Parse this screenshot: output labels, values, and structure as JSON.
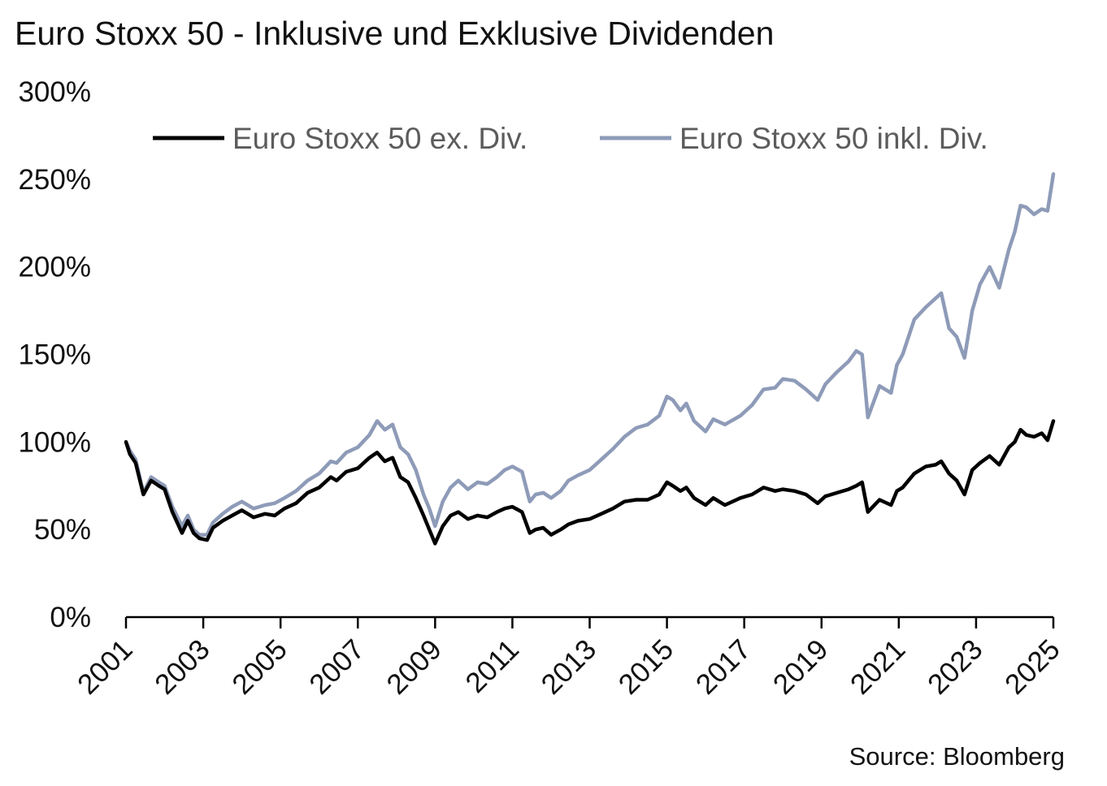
{
  "title": "Euro Stoxx 50 - Inklusive und Exklusive Dividenden",
  "source": "Source: Bloomberg",
  "colors": {
    "ex_div": "#000000",
    "incl_div": "#8e9bb8",
    "axis": "#000000"
  },
  "chart_data": {
    "type": "line",
    "title": "Euro Stoxx 50 - Inklusive und Exklusive Dividenden",
    "xlabel": "",
    "ylabel": "",
    "ylim": [
      0,
      300
    ],
    "xlim": [
      2001,
      2025
    ],
    "y_tick_labels": [
      "0%",
      "50%",
      "100%",
      "150%",
      "200%",
      "250%",
      "300%"
    ],
    "y_ticks": [
      0,
      50,
      100,
      150,
      200,
      250,
      300
    ],
    "x_tick_labels": [
      "2001",
      "2003",
      "2005",
      "2007",
      "2009",
      "2011",
      "2013",
      "2015",
      "2017",
      "2019",
      "2021",
      "2023",
      "2025"
    ],
    "x_ticks": [
      2001,
      2003,
      2005,
      2007,
      2009,
      2011,
      2013,
      2015,
      2017,
      2019,
      2021,
      2023,
      2025
    ],
    "grid": false,
    "legend_position": "top",
    "series": [
      {
        "name": "Euro Stoxx 50 ex. Div.",
        "color": "#000000",
        "x": [
          2001.0,
          2001.1,
          2001.25,
          2001.45,
          2001.65,
          2001.85,
          2002.0,
          2002.2,
          2002.45,
          2002.6,
          2002.75,
          2002.9,
          2003.1,
          2003.25,
          2003.5,
          2003.75,
          2004.0,
          2004.3,
          2004.6,
          2004.85,
          2005.1,
          2005.4,
          2005.7,
          2006.0,
          2006.3,
          2006.45,
          2006.7,
          2007.0,
          2007.3,
          2007.5,
          2007.7,
          2007.9,
          2008.1,
          2008.3,
          2008.5,
          2008.7,
          2008.85,
          2009.0,
          2009.2,
          2009.4,
          2009.6,
          2009.85,
          2010.1,
          2010.35,
          2010.6,
          2010.8,
          2011.0,
          2011.25,
          2011.45,
          2011.6,
          2011.8,
          2012.0,
          2012.25,
          2012.45,
          2012.7,
          2013.0,
          2013.3,
          2013.6,
          2013.9,
          2014.2,
          2014.5,
          2014.8,
          2015.0,
          2015.15,
          2015.35,
          2015.5,
          2015.7,
          2016.0,
          2016.2,
          2016.5,
          2016.9,
          2017.2,
          2017.5,
          2017.8,
          2018.0,
          2018.3,
          2018.6,
          2018.9,
          2019.1,
          2019.4,
          2019.7,
          2019.9,
          2020.05,
          2020.2,
          2020.5,
          2020.8,
          2020.95,
          2021.1,
          2021.4,
          2021.7,
          2021.95,
          2022.1,
          2022.3,
          2022.5,
          2022.7,
          2022.9,
          2023.1,
          2023.35,
          2023.6,
          2023.85,
          2024.0,
          2024.15,
          2024.3,
          2024.5,
          2024.7,
          2024.85,
          2025.0
        ],
        "y": [
          100,
          93,
          88,
          70,
          78,
          75,
          73,
          60,
          48,
          55,
          48,
          45,
          44,
          51,
          55,
          58,
          61,
          57,
          59,
          58,
          62,
          65,
          71,
          74,
          80,
          78,
          83,
          85,
          91,
          94,
          89,
          91,
          80,
          77,
          68,
          58,
          50,
          42,
          52,
          58,
          60,
          56,
          58,
          57,
          60,
          62,
          63,
          60,
          48,
          50,
          51,
          47,
          50,
          53,
          55,
          56,
          59,
          62,
          66,
          67,
          67,
          70,
          77,
          75,
          72,
          74,
          68,
          64,
          68,
          64,
          68,
          70,
          74,
          72,
          73,
          72,
          70,
          65,
          69,
          71,
          73,
          75,
          77,
          60,
          67,
          64,
          72,
          74,
          82,
          86,
          87,
          89,
          82,
          78,
          70,
          84,
          88,
          92,
          87,
          97,
          100,
          107,
          104,
          103,
          105,
          101,
          112
        ]
      },
      {
        "name": "Euro Stoxx 50 inkl. Div.",
        "color": "#8e9bb8",
        "x": [
          2001.0,
          2001.1,
          2001.25,
          2001.45,
          2001.65,
          2001.85,
          2002.0,
          2002.2,
          2002.45,
          2002.6,
          2002.75,
          2002.9,
          2003.1,
          2003.25,
          2003.5,
          2003.75,
          2004.0,
          2004.3,
          2004.6,
          2004.85,
          2005.1,
          2005.4,
          2005.7,
          2006.0,
          2006.3,
          2006.45,
          2006.7,
          2007.0,
          2007.3,
          2007.5,
          2007.7,
          2007.9,
          2008.1,
          2008.3,
          2008.5,
          2008.7,
          2008.85,
          2009.0,
          2009.2,
          2009.4,
          2009.6,
          2009.85,
          2010.1,
          2010.35,
          2010.6,
          2010.8,
          2011.0,
          2011.25,
          2011.45,
          2011.6,
          2011.8,
          2012.0,
          2012.25,
          2012.45,
          2012.7,
          2013.0,
          2013.3,
          2013.6,
          2013.9,
          2014.2,
          2014.5,
          2014.8,
          2015.0,
          2015.15,
          2015.35,
          2015.5,
          2015.7,
          2016.0,
          2016.2,
          2016.5,
          2016.9,
          2017.2,
          2017.5,
          2017.8,
          2018.0,
          2018.3,
          2018.6,
          2018.9,
          2019.1,
          2019.4,
          2019.7,
          2019.9,
          2020.05,
          2020.2,
          2020.5,
          2020.8,
          2020.95,
          2021.1,
          2021.4,
          2021.7,
          2021.95,
          2022.1,
          2022.3,
          2022.5,
          2022.7,
          2022.9,
          2023.1,
          2023.35,
          2023.6,
          2023.85,
          2024.0,
          2024.15,
          2024.3,
          2024.5,
          2024.7,
          2024.85,
          2025.0
        ],
        "y": [
          100,
          95,
          90,
          71,
          80,
          77,
          75,
          63,
          52,
          58,
          50,
          47,
          47,
          54,
          59,
          63,
          66,
          62,
          64,
          65,
          68,
          72,
          78,
          82,
          89,
          88,
          94,
          97,
          104,
          112,
          107,
          110,
          97,
          93,
          84,
          70,
          62,
          52,
          66,
          74,
          78,
          73,
          77,
          76,
          80,
          84,
          86,
          83,
          66,
          70,
          71,
          68,
          72,
          78,
          81,
          84,
          90,
          96,
          103,
          108,
          110,
          115,
          126,
          124,
          118,
          122,
          112,
          106,
          113,
          110,
          115,
          121,
          130,
          131,
          136,
          135,
          130,
          124,
          133,
          140,
          146,
          152,
          150,
          114,
          132,
          128,
          144,
          150,
          170,
          177,
          182,
          185,
          165,
          160,
          148,
          175,
          190,
          200,
          188,
          210,
          220,
          235,
          234,
          230,
          233,
          232,
          253
        ]
      }
    ]
  }
}
